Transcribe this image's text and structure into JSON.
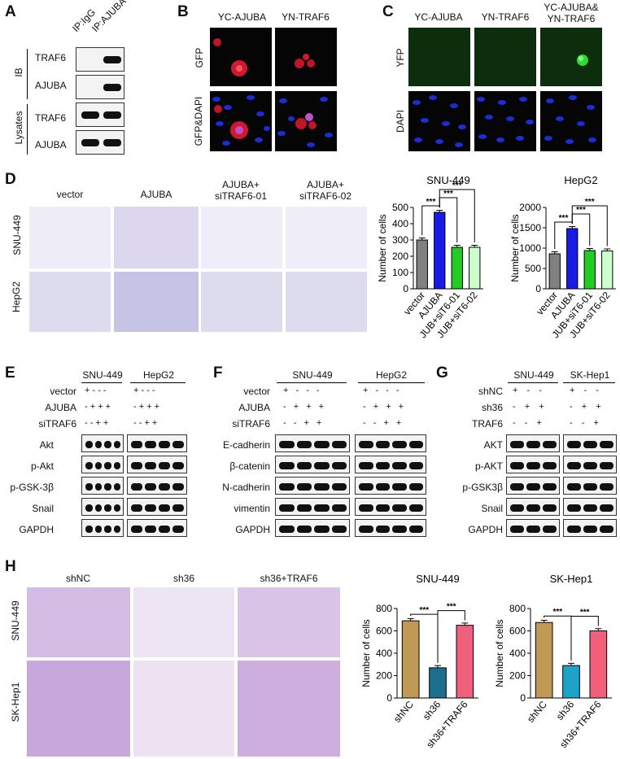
{
  "panels": {
    "A": {
      "letter": "A",
      "col_labels": [
        "IP:IgG",
        "IP:AJUBA"
      ],
      "group_labels": [
        "IB",
        "Lysates"
      ],
      "rows": [
        "TRAF6",
        "AJUBA",
        "TRAF6",
        "AJUBA"
      ]
    },
    "B": {
      "letter": "B",
      "col_labels": [
        "YC-AJUBA",
        "YN-TRAF6"
      ],
      "row_labels": [
        "GFP",
        "GFP&DAPI"
      ]
    },
    "C": {
      "letter": "C",
      "col_labels": [
        "YC-AJUBA",
        "YN-TRAF6",
        "YC-AJUBA&",
        "YN-TRAF6"
      ],
      "row_labels": [
        "YFP",
        "DAPI"
      ]
    },
    "D": {
      "letter": "D",
      "col_labels": [
        "vector",
        "AJUBA",
        "AJUBA+",
        "siTRAF6-01",
        "AJUBA+",
        "siTRAF6-02"
      ],
      "row_labels": [
        "SNU-449",
        "HepG2"
      ]
    },
    "E": {
      "letter": "E",
      "cell_lines": [
        "SNU-449",
        "HepG2"
      ],
      "conditions": [
        "vector",
        "AJUBA",
        "siTRAF6"
      ],
      "signs": [
        "+ - - -",
        "- + + +",
        "- - + +"
      ],
      "rows": [
        "Akt",
        "p-Akt",
        "p-GSK-3β",
        "Snail",
        "GAPDH"
      ]
    },
    "F": {
      "letter": "F",
      "cell_lines": [
        "SNU-449",
        "HepG2"
      ],
      "conditions": [
        "vector",
        "AJUBA",
        "siTRAF6"
      ],
      "signs": [
        "+ - - -",
        "- + + +",
        "- - + +"
      ],
      "rows": [
        "E-cadherin",
        "β-catenin",
        "N-cadherin",
        "vimentin",
        "GAPDH"
      ]
    },
    "G": {
      "letter": "G",
      "cell_lines": [
        "SNU-449",
        "SK-Hep1"
      ],
      "conditions": [
        "shNC",
        "sh36",
        "TRAF6"
      ],
      "signs": [
        "+ - -",
        "- + +",
        "- - +"
      ],
      "rows": [
        "AKT",
        "p-AKT",
        "p-GSK3β",
        "Snail",
        "GAPDH"
      ]
    },
    "H": {
      "letter": "H",
      "col_labels": [
        "shNC",
        "sh36",
        "sh36+TRAF6"
      ],
      "row_labels": [
        "SNU-449",
        "SK-Hep1"
      ]
    }
  },
  "significance": "***",
  "chart_data": [
    {
      "type": "bar",
      "title": "SNU-449",
      "ylabel": "Number of cells",
      "categories": [
        "vector",
        "AJUBA",
        "JUB+siT6-01",
        "JUB+siT6-02"
      ],
      "values": [
        300,
        470,
        255,
        255
      ],
      "ylim": [
        0,
        500
      ],
      "yticks": [
        0,
        100,
        200,
        300,
        400,
        500
      ],
      "colors": [
        "#808080",
        "#1a1ae6",
        "#22cc22",
        "#ccffcc"
      ]
    },
    {
      "type": "bar",
      "title": "HepG2",
      "ylabel": "Number of cells",
      "categories": [
        "vector",
        "AJUBA",
        "JUB+siT6-01",
        "JUB+siT6-02"
      ],
      "values": [
        860,
        1480,
        940,
        930
      ],
      "ylim": [
        0,
        2000
      ],
      "yticks": [
        0,
        500,
        1000,
        1500,
        2000
      ],
      "colors": [
        "#808080",
        "#1a1ae6",
        "#22cc22",
        "#ccffcc"
      ]
    },
    {
      "type": "bar",
      "title": "SNU-449",
      "ylabel": "Number of cells",
      "categories": [
        "shNC",
        "sh36",
        "sh36+TRAF6"
      ],
      "values": [
        690,
        270,
        650
      ],
      "ylim": [
        0,
        800
      ],
      "yticks": [
        0,
        200,
        400,
        600,
        800
      ],
      "colors": [
        "#c09a55",
        "#1b6e8c",
        "#f0607a"
      ]
    },
    {
      "type": "bar",
      "title": "SK-Hep1",
      "ylabel": "Number of cells",
      "categories": [
        "shNC",
        "sh36",
        "sh36+TRAF6"
      ],
      "values": [
        675,
        290,
        600
      ],
      "ylim": [
        0,
        800
      ],
      "yticks": [
        0,
        200,
        400,
        600,
        800
      ],
      "colors": [
        "#c09a55",
        "#1ea3c8",
        "#f0607a"
      ]
    }
  ]
}
